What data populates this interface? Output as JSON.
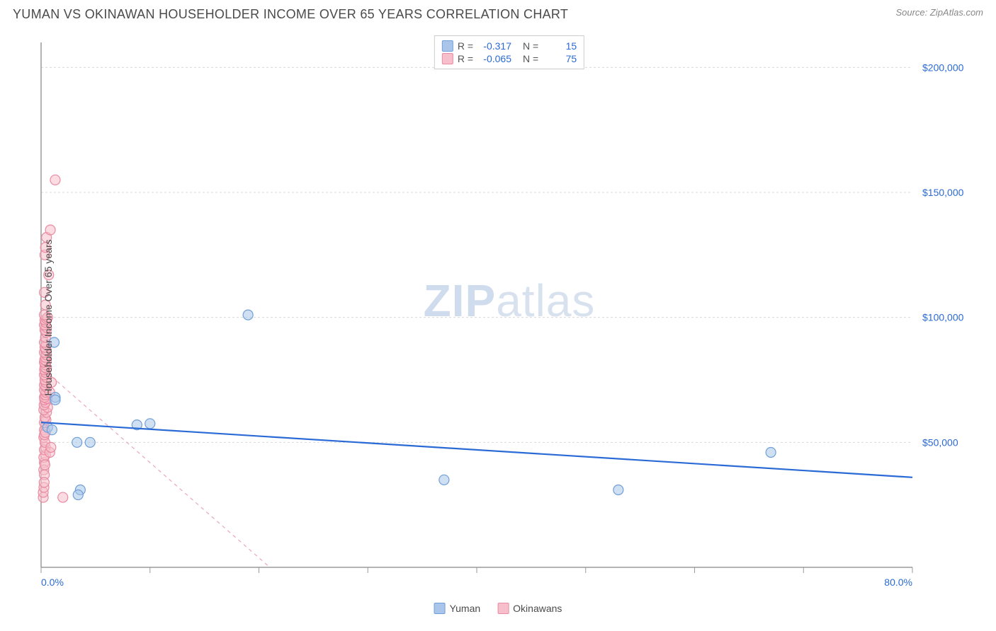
{
  "title": "YUMAN VS OKINAWAN HOUSEHOLDER INCOME OVER 65 YEARS CORRELATION CHART",
  "source": "Source: ZipAtlas.com",
  "watermark_bold": "ZIP",
  "watermark_light": "atlas",
  "y_axis_label": "Householder Income Over 65 years",
  "chart": {
    "type": "scatter",
    "background_color": "#ffffff",
    "grid_color": "#d9d9d9",
    "grid_dash": "3,3",
    "axis_line_color": "#9a9a9a",
    "xlim": [
      0,
      80
    ],
    "ylim": [
      0,
      210000
    ],
    "x_tick_positions": [
      0,
      10,
      20,
      30,
      40,
      50,
      60,
      70,
      80
    ],
    "x_tick_labels_shown": {
      "0": "0.0%",
      "80": "80.0%"
    },
    "y_grid_positions": [
      50000,
      100000,
      150000,
      200000
    ],
    "y_tick_labels": {
      "50000": "$50,000",
      "100000": "$100,000",
      "150000": "$150,000",
      "200000": "$200,000"
    },
    "tick_label_color": "#2a6ad6",
    "tick_label_fontsize": 14,
    "marker_radius": 7,
    "marker_stroke_width": 1.2,
    "series": [
      {
        "name": "Yuman",
        "fill_color": "#a9c6ea",
        "stroke_color": "#6f9ed8",
        "trend_line_color": "#2a6ad6",
        "trend_line_width": 2.2,
        "trend_line_dash": "none",
        "R": "-0.317",
        "N": "15",
        "trend": {
          "x1": 0,
          "y1": 58000,
          "x2": 80,
          "y2": 36000
        },
        "points": [
          [
            0.6,
            56000
          ],
          [
            1.0,
            55000
          ],
          [
            1.2,
            90000
          ],
          [
            1.3,
            68000
          ],
          [
            1.3,
            67000
          ],
          [
            3.3,
            50000
          ],
          [
            4.5,
            50000
          ],
          [
            3.6,
            31000
          ],
          [
            3.4,
            29000
          ],
          [
            8.8,
            57000
          ],
          [
            10.0,
            57500
          ],
          [
            19.0,
            101000
          ],
          [
            37.0,
            35000
          ],
          [
            53.0,
            31000
          ],
          [
            67.0,
            46000
          ]
        ]
      },
      {
        "name": "Okinawans",
        "fill_color": "#f6bfcb",
        "stroke_color": "#e98aa0",
        "trend_line_color": "#e9a8b4",
        "trend_line_width": 1.2,
        "trend_line_dash": "5,5",
        "R": "-0.065",
        "N": "75",
        "trend": {
          "x1": 0,
          "y1": 80000,
          "x2": 21,
          "y2": 0
        },
        "points": [
          [
            0.2,
            28000
          ],
          [
            0.2,
            30000
          ],
          [
            2.0,
            28000
          ],
          [
            0.3,
            42000
          ],
          [
            0.4,
            45000
          ],
          [
            0.4,
            48000
          ],
          [
            0.25,
            52000
          ],
          [
            0.3,
            55000
          ],
          [
            0.3,
            58000
          ],
          [
            0.45,
            59000
          ],
          [
            0.35,
            60000
          ],
          [
            0.5,
            62000
          ],
          [
            0.25,
            63000
          ],
          [
            0.6,
            64000
          ],
          [
            0.28,
            65000
          ],
          [
            0.4,
            66000
          ],
          [
            0.33,
            67000
          ],
          [
            0.55,
            67500
          ],
          [
            0.3,
            68000
          ],
          [
            0.38,
            69000
          ],
          [
            0.45,
            70000
          ],
          [
            0.3,
            71000
          ],
          [
            0.5,
            72000
          ],
          [
            0.3,
            73000
          ],
          [
            0.42,
            74000
          ],
          [
            0.35,
            75000
          ],
          [
            0.48,
            76000
          ],
          [
            0.3,
            77000
          ],
          [
            0.4,
            78000
          ],
          [
            0.32,
            79000
          ],
          [
            0.5,
            79500
          ],
          [
            0.35,
            80000
          ],
          [
            0.42,
            81000
          ],
          [
            0.3,
            82000
          ],
          [
            0.48,
            82500
          ],
          [
            0.33,
            83000
          ],
          [
            0.4,
            84000
          ],
          [
            0.5,
            85000
          ],
          [
            0.3,
            86000
          ],
          [
            0.45,
            87000
          ],
          [
            0.35,
            88000
          ],
          [
            0.5,
            89000
          ],
          [
            0.3,
            90000
          ],
          [
            0.4,
            92000
          ],
          [
            0.47,
            94000
          ],
          [
            0.35,
            95000
          ],
          [
            0.5,
            96000
          ],
          [
            0.3,
            97000
          ],
          [
            0.42,
            98000
          ],
          [
            0.35,
            99000
          ],
          [
            0.5,
            99500
          ],
          [
            0.6,
            100000
          ],
          [
            0.3,
            101000
          ],
          [
            0.4,
            105000
          ],
          [
            0.3,
            110000
          ],
          [
            0.7,
            117000
          ],
          [
            0.35,
            125000
          ],
          [
            0.4,
            128000
          ],
          [
            0.5,
            132000
          ],
          [
            0.85,
            135000
          ],
          [
            1.3,
            155000
          ],
          [
            0.25,
            44000
          ],
          [
            0.3,
            47000
          ],
          [
            0.35,
            50000
          ],
          [
            0.3,
            53000
          ],
          [
            0.4,
            54000
          ],
          [
            0.25,
            39000
          ],
          [
            0.3,
            37000
          ],
          [
            0.35,
            41000
          ],
          [
            0.8,
            46000
          ],
          [
            0.9,
            48000
          ],
          [
            0.26,
            32000
          ],
          [
            0.28,
            34000
          ],
          [
            0.95,
            74000
          ],
          [
            0.8,
            70000
          ]
        ]
      }
    ]
  },
  "legend_bottom": [
    {
      "label": "Yuman",
      "swatch_fill": "#a9c6ea",
      "swatch_stroke": "#6f9ed8"
    },
    {
      "label": "Okinawans",
      "swatch_fill": "#f6bfcb",
      "swatch_stroke": "#e98aa0"
    }
  ]
}
